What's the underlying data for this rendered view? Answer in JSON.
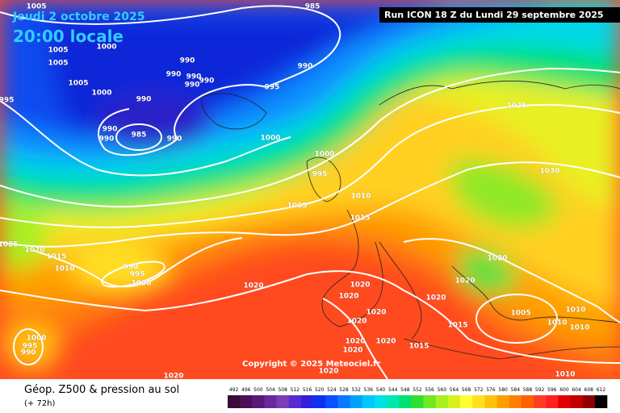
{
  "header": {
    "valid_date": "Jeudi 2 octobre 2025",
    "valid_time": "20:00 locale",
    "run": "Run ICON 18 Z du Lundi 29 septembre 2025"
  },
  "copyright": "Copyright © 2025 Meteociel.fr",
  "footer": {
    "title": "Géop. Z500 & pression au sol",
    "lead": "(+ 72h)"
  },
  "colorbar": {
    "ticks": [
      492,
      496,
      500,
      504,
      508,
      512,
      516,
      520,
      524,
      528,
      532,
      536,
      540,
      544,
      548,
      552,
      556,
      560,
      564,
      568,
      572,
      576,
      580,
      584,
      588,
      592,
      596,
      600,
      604,
      608,
      612
    ],
    "colors": [
      "#3a0a3a",
      "#4b0f56",
      "#5a1a7a",
      "#6a2a9a",
      "#7a3cb8",
      "#5a2ad0",
      "#3020e0",
      "#1030f0",
      "#0a50ff",
      "#0a78ff",
      "#00a0ff",
      "#00c8ff",
      "#00e0e8",
      "#00e8b0",
      "#00e070",
      "#30e030",
      "#70e820",
      "#a8f020",
      "#d8f020",
      "#ffff30",
      "#ffe020",
      "#ffc010",
      "#ffa000",
      "#ff8000",
      "#ff6000",
      "#ff4020",
      "#ff2020",
      "#e00000",
      "#c00000",
      "#900000",
      "#000000"
    ]
  },
  "isobar_labels": [
    "1005",
    "1005",
    "1005",
    "1005",
    "1000",
    "1000",
    "990",
    "990",
    "990",
    "990",
    "990",
    "990",
    "990",
    "990",
    "985",
    "990",
    "985",
    "990",
    "995",
    "995",
    "1000",
    "1000",
    "995",
    "1010",
    "1005",
    "1015",
    "1025",
    "1030",
    "1025",
    "1020",
    "1015",
    "1010",
    "990",
    "995",
    "1000",
    "1020",
    "1020",
    "1020",
    "1020",
    "1020",
    "1020",
    "1020",
    "1020",
    "1005",
    "1010",
    "1010",
    "1010",
    "1015",
    "1015",
    "1020",
    "1020",
    "1020",
    "1000",
    "995",
    "990",
    "1020",
    "1020",
    "1010"
  ]
}
